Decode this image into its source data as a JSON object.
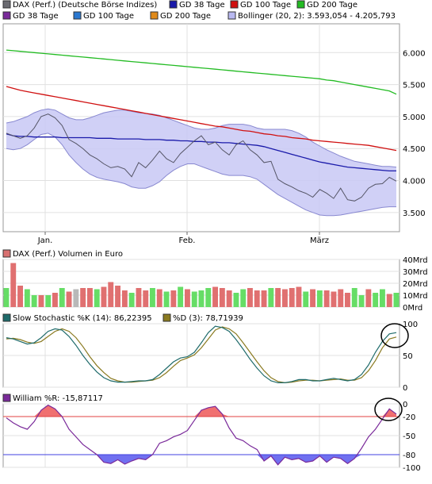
{
  "legend_main": [
    {
      "label": "DAX (Perf.) (Deutsche Börse Indizes)",
      "color": "#6a6a70"
    },
    {
      "label": "GD 38 Tage",
      "color": "#1a1aaa"
    },
    {
      "label": "GD 100 Tage",
      "color": "#d01010"
    },
    {
      "label": "GD 200 Tage",
      "color": "#22bb22"
    },
    {
      "label": "GD 38 Tage",
      "color": "#7a2a9a"
    },
    {
      "label": "GD 100 Tage",
      "color": "#2a78d0"
    },
    {
      "label": "GD 200 Tage",
      "color": "#e08a1a"
    },
    {
      "label": "Bollinger (20, 2): 3.593,054 - 4.205,793",
      "color": "#b8b8f0"
    }
  ],
  "legend_volume": {
    "label": "DAX (Perf.) Volumen in Euro",
    "color": "#d87070"
  },
  "legend_stoch_k": {
    "label": "Slow Stochastic %K (14): 86,22395",
    "color": "#1f6b6b"
  },
  "legend_stoch_d": {
    "label": "%D (3): 78,71939",
    "color": "#8a7a20"
  },
  "legend_williams": {
    "label": "William %R: -15,87117",
    "color": "#7a2a9a"
  },
  "colors": {
    "price": "#555566",
    "gd38": "#1a1aaa",
    "gd100": "#d01010",
    "gd200": "#22bb22",
    "bollinger_fill": "#c8c8f4",
    "bollinger_edge": "#8888d0",
    "vol_up": "#66dd66",
    "vol_down": "#e07070",
    "vol_neutral": "#b8b8b8",
    "stoch_k": "#1f6b6b",
    "stoch_d": "#8a7a20",
    "williams": "#7a2a9a",
    "williams_over": "#f07070",
    "williams_under": "#7070f0",
    "refline_red": "#e04040",
    "refline_blue": "#4040e0",
    "grid": "#e0e0e0"
  },
  "chart_data": [
    {
      "type": "line",
      "name": "price",
      "x_ticks": [
        "Jan.",
        "Feb.",
        "März"
      ],
      "ylim": [
        3.2,
        6.45
      ],
      "y_ticks": [
        {
          "v": 3.5,
          "label": "3.500"
        },
        {
          "v": 4.0,
          "label": "4.000"
        },
        {
          "v": 4.5,
          "label": "4.500"
        },
        {
          "v": 5.0,
          "label": "5.000"
        },
        {
          "v": 5.5,
          "label": "5.500"
        },
        {
          "v": 6.0,
          "label": "6.000"
        }
      ],
      "n": 57,
      "series": [
        {
          "name": "DAX (Perf.) (Deutsche Börse Indizes)",
          "values": [
            4.74,
            4.7,
            4.66,
            4.7,
            4.82,
            5.0,
            5.04,
            4.98,
            4.86,
            4.64,
            4.58,
            4.5,
            4.4,
            4.34,
            4.26,
            4.2,
            4.22,
            4.18,
            4.06,
            4.28,
            4.2,
            4.32,
            4.46,
            4.34,
            4.28,
            4.42,
            4.52,
            4.62,
            4.7,
            4.56,
            4.6,
            4.48,
            4.4,
            4.56,
            4.62,
            4.48,
            4.4,
            4.28,
            4.3,
            4.02,
            3.95,
            3.9,
            3.84,
            3.8,
            3.74,
            3.86,
            3.8,
            3.72,
            3.88,
            3.7,
            3.68,
            3.74,
            3.88,
            3.94,
            3.95,
            4.05,
            3.99
          ]
        },
        {
          "name": "GD 38 Tage",
          "values": [
            4.73,
            4.7,
            4.69,
            4.69,
            4.68,
            4.68,
            4.68,
            4.68,
            4.67,
            4.67,
            4.67,
            4.67,
            4.67,
            4.66,
            4.66,
            4.66,
            4.65,
            4.65,
            4.65,
            4.65,
            4.64,
            4.64,
            4.64,
            4.63,
            4.63,
            4.62,
            4.62,
            4.61,
            4.61,
            4.6,
            4.6,
            4.59,
            4.59,
            4.58,
            4.57,
            4.56,
            4.55,
            4.53,
            4.5,
            4.47,
            4.44,
            4.41,
            4.38,
            4.35,
            4.32,
            4.29,
            4.27,
            4.25,
            4.23,
            4.21,
            4.2,
            4.19,
            4.18,
            4.17,
            4.16,
            4.15,
            4.15
          ]
        },
        {
          "name": "GD 100 Tage",
          "values": [
            5.47,
            5.44,
            5.41,
            5.39,
            5.37,
            5.35,
            5.33,
            5.31,
            5.29,
            5.27,
            5.25,
            5.23,
            5.21,
            5.19,
            5.17,
            5.15,
            5.13,
            5.11,
            5.09,
            5.07,
            5.05,
            5.03,
            5.01,
            4.99,
            4.97,
            4.95,
            4.93,
            4.91,
            4.89,
            4.87,
            4.85,
            4.84,
            4.82,
            4.8,
            4.78,
            4.77,
            4.75,
            4.73,
            4.72,
            4.7,
            4.69,
            4.67,
            4.66,
            4.65,
            4.63,
            4.62,
            4.61,
            4.6,
            4.59,
            4.58,
            4.57,
            4.56,
            4.55,
            4.53,
            4.51,
            4.49,
            4.47
          ]
        },
        {
          "name": "GD 200 Tage",
          "values": [
            6.04,
            6.03,
            6.02,
            6.01,
            6.0,
            5.99,
            5.98,
            5.97,
            5.96,
            5.95,
            5.94,
            5.93,
            5.92,
            5.91,
            5.9,
            5.89,
            5.88,
            5.87,
            5.86,
            5.85,
            5.84,
            5.83,
            5.82,
            5.81,
            5.8,
            5.79,
            5.78,
            5.77,
            5.76,
            5.75,
            5.74,
            5.73,
            5.72,
            5.71,
            5.7,
            5.69,
            5.68,
            5.67,
            5.66,
            5.65,
            5.64,
            5.63,
            5.62,
            5.61,
            5.6,
            5.59,
            5.57,
            5.56,
            5.54,
            5.52,
            5.5,
            5.48,
            5.46,
            5.44,
            5.42,
            5.4,
            5.35
          ]
        },
        {
          "name": "Bollinger upper",
          "values": [
            4.9,
            4.92,
            4.96,
            5.0,
            5.06,
            5.1,
            5.12,
            5.1,
            5.04,
            4.98,
            4.95,
            4.95,
            4.98,
            5.02,
            5.06,
            5.08,
            5.1,
            5.1,
            5.08,
            5.06,
            5.05,
            5.04,
            5.02,
            4.98,
            4.94,
            4.9,
            4.86,
            4.82,
            4.8,
            4.8,
            4.82,
            4.86,
            4.88,
            4.88,
            4.88,
            4.86,
            4.82,
            4.8,
            4.8,
            4.8,
            4.8,
            4.78,
            4.74,
            4.68,
            4.6,
            4.54,
            4.48,
            4.43,
            4.38,
            4.34,
            4.3,
            4.28,
            4.26,
            4.24,
            4.22,
            4.22,
            4.21
          ]
        },
        {
          "name": "Bollinger lower",
          "values": [
            4.5,
            4.48,
            4.5,
            4.56,
            4.64,
            4.72,
            4.74,
            4.68,
            4.56,
            4.4,
            4.28,
            4.18,
            4.1,
            4.05,
            4.02,
            4.0,
            3.98,
            3.95,
            3.9,
            3.88,
            3.88,
            3.92,
            3.98,
            4.08,
            4.16,
            4.22,
            4.26,
            4.26,
            4.22,
            4.18,
            4.14,
            4.1,
            4.08,
            4.08,
            4.08,
            4.06,
            4.02,
            3.94,
            3.86,
            3.78,
            3.72,
            3.66,
            3.6,
            3.54,
            3.5,
            3.46,
            3.45,
            3.45,
            3.46,
            3.48,
            3.5,
            3.52,
            3.54,
            3.56,
            3.58,
            3.59,
            3.59
          ]
        }
      ]
    },
    {
      "type": "bar",
      "name": "volume",
      "ylim": [
        0,
        40
      ],
      "y_ticks": [
        {
          "v": 40,
          "label": "40Mrd"
        },
        {
          "v": 30,
          "label": "30Mrd"
        },
        {
          "v": 20,
          "label": "20Mrd"
        },
        {
          "v": 10,
          "label": "10Mrd"
        },
        {
          "v": 0,
          "label": "0Mrd"
        }
      ],
      "values": [
        16,
        37,
        18,
        15,
        10,
        10,
        10,
        12,
        16,
        13,
        15,
        16,
        16,
        15,
        17,
        21,
        18,
        14,
        12,
        16,
        14,
        16,
        15,
        13,
        14,
        17,
        15,
        13,
        14,
        16,
        17,
        16,
        14,
        12,
        15,
        16,
        14,
        14,
        16,
        16,
        15,
        16,
        17,
        13,
        15,
        14,
        14,
        13,
        15,
        12,
        16,
        10,
        15,
        12,
        15,
        11,
        12
      ],
      "directions": [
        "u",
        "d",
        "d",
        "u",
        "u",
        "d",
        "u",
        "d",
        "u",
        "d",
        "n",
        "d",
        "d",
        "u",
        "d",
        "d",
        "d",
        "d",
        "u",
        "d",
        "d",
        "u",
        "d",
        "u",
        "d",
        "u",
        "d",
        "u",
        "u",
        "u",
        "d",
        "d",
        "d",
        "u",
        "u",
        "d",
        "d",
        "d",
        "u",
        "d",
        "d",
        "d",
        "d",
        "u",
        "d",
        "u",
        "d",
        "d",
        "d",
        "d",
        "u",
        "u",
        "d",
        "u",
        "u",
        "d",
        "u"
      ]
    },
    {
      "type": "line",
      "name": "stochastic",
      "ylim": [
        0,
        100
      ],
      "y_ticks": [
        {
          "v": 100,
          "label": "100"
        },
        {
          "v": 50,
          "label": "50"
        },
        {
          "v": 0,
          "label": "0"
        }
      ],
      "series": [
        {
          "name": "Slow Stochastic %K (14)",
          "values": [
            78,
            76,
            72,
            68,
            70,
            78,
            88,
            92,
            90,
            80,
            66,
            50,
            36,
            24,
            15,
            10,
            8,
            8,
            9,
            10,
            10,
            12,
            20,
            30,
            40,
            46,
            48,
            55,
            70,
            86,
            96,
            94,
            88,
            75,
            60,
            44,
            30,
            18,
            10,
            7,
            7,
            9,
            12,
            12,
            10,
            10,
            12,
            14,
            12,
            10,
            12,
            20,
            35,
            55,
            72,
            84,
            86
          ]
        },
        {
          "name": "%D (3)",
          "values": [
            76,
            77,
            75,
            71,
            69,
            72,
            80,
            88,
            92,
            88,
            78,
            64,
            48,
            34,
            23,
            14,
            10,
            8,
            8,
            9,
            10,
            11,
            15,
            23,
            33,
            42,
            46,
            51,
            62,
            76,
            90,
            95,
            92,
            84,
            70,
            55,
            40,
            26,
            15,
            9,
            7,
            8,
            10,
            11,
            11,
            10,
            11,
            12,
            13,
            11,
            11,
            15,
            26,
            42,
            62,
            76,
            79
          ]
        }
      ]
    },
    {
      "type": "line",
      "name": "williams",
      "ylim": [
        -100,
        0
      ],
      "y_ticks": [
        {
          "v": 0,
          "label": "0"
        },
        {
          "v": -20,
          "label": "-20"
        },
        {
          "v": -50,
          "label": "-50"
        },
        {
          "v": -80,
          "label": "-80"
        },
        {
          "v": -100,
          "label": "-100"
        }
      ],
      "ref_lines": [
        -20,
        -80
      ],
      "values": [
        -22,
        -30,
        -36,
        -40,
        -28,
        -10,
        -2,
        -8,
        -20,
        -40,
        -52,
        -64,
        -72,
        -80,
        -92,
        -94,
        -88,
        -95,
        -90,
        -86,
        -88,
        -80,
        -62,
        -58,
        -52,
        -48,
        -42,
        -26,
        -10,
        -6,
        -4,
        -16,
        -38,
        -54,
        -58,
        -66,
        -72,
        -90,
        -82,
        -96,
        -84,
        -88,
        -86,
        -92,
        -90,
        -82,
        -92,
        -84,
        -86,
        -94,
        -86,
        -70,
        -52,
        -40,
        -24,
        -8,
        -16
      ]
    }
  ]
}
